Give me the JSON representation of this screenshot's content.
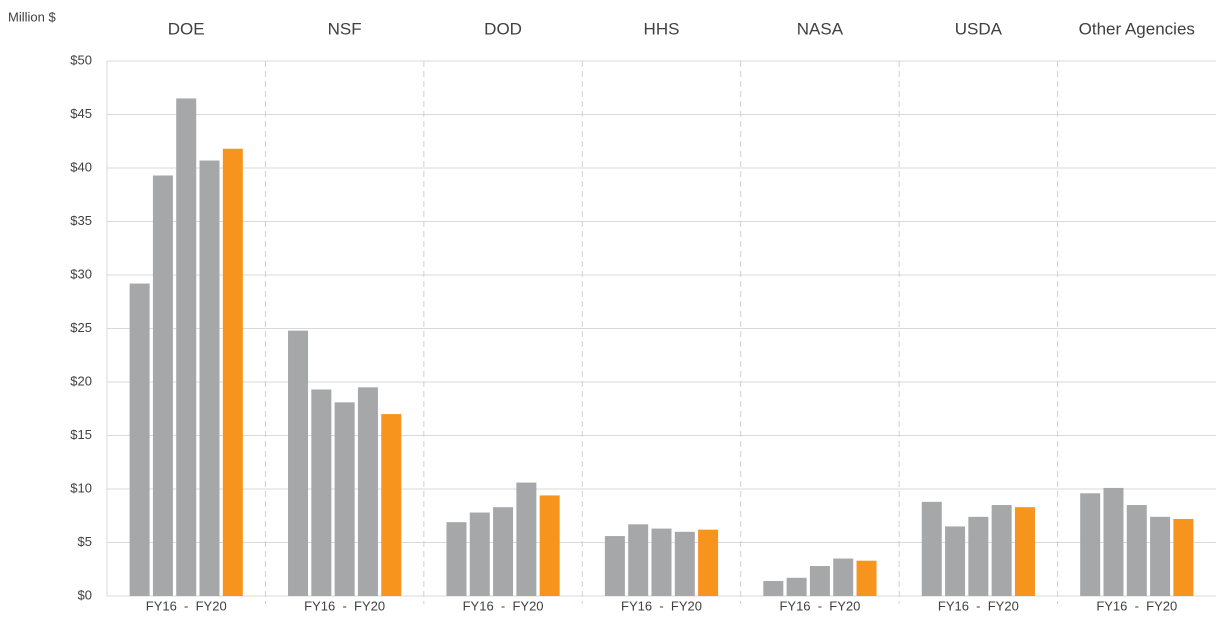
{
  "chart_data": {
    "type": "bar",
    "y_axis_label": "Million $",
    "categories": [
      "DOE",
      "NSF",
      "DOD",
      "HHS",
      "NASA",
      "USDA",
      "Other Agencies"
    ],
    "group_label": "FY16  -  FY20",
    "series": [
      {
        "color": "#a6a7a9",
        "values": [
          29.2,
          24.8,
          6.9,
          5.6,
          1.4,
          8.8,
          9.6
        ]
      },
      {
        "color": "#a6a7a9",
        "values": [
          39.3,
          19.3,
          7.8,
          6.7,
          1.7,
          6.5,
          10.1
        ]
      },
      {
        "color": "#a6a7a9",
        "values": [
          46.5,
          18.1,
          8.3,
          6.3,
          2.8,
          7.4,
          8.5
        ]
      },
      {
        "color": "#a6a7a9",
        "values": [
          40.7,
          19.5,
          10.6,
          6.0,
          3.5,
          8.5,
          7.4
        ]
      },
      {
        "color": "#f7941d",
        "values": [
          41.8,
          17.0,
          9.4,
          6.2,
          3.3,
          8.3,
          7.2
        ]
      }
    ],
    "ylim": [
      0,
      50
    ],
    "yticks": [
      {
        "value": 0,
        "label": "$0"
      },
      {
        "value": 5,
        "label": "$5"
      },
      {
        "value": 10,
        "label": "$10"
      },
      {
        "value": 15,
        "label": "$15"
      },
      {
        "value": 20,
        "label": "$20"
      },
      {
        "value": 25,
        "label": "$25"
      },
      {
        "value": 30,
        "label": "$30"
      },
      {
        "value": 35,
        "label": "$35"
      },
      {
        "value": 40,
        "label": "$40"
      },
      {
        "value": 45,
        "label": "$45"
      },
      {
        "value": 50,
        "label": "$50"
      }
    ],
    "grid": true
  }
}
